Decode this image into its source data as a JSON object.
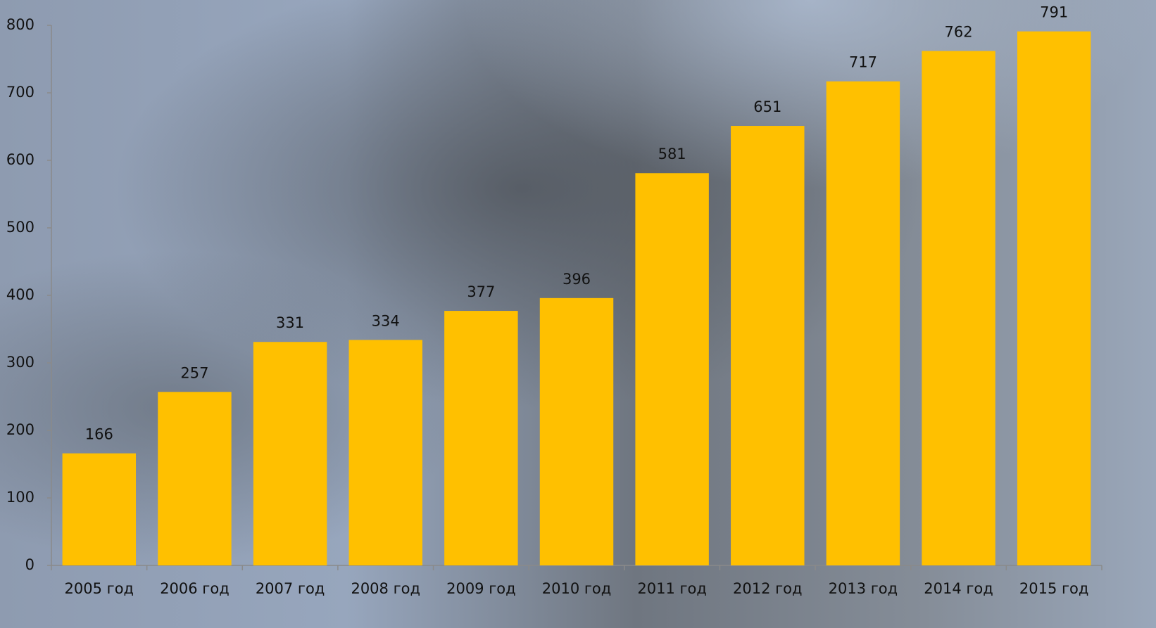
{
  "chart_data": {
    "type": "bar",
    "categories": [
      "2005 год",
      "2006 год",
      "2007 год",
      "2008 год",
      "2009 год",
      "2010 год",
      "2011 год",
      "2012 год",
      "2013 год",
      "2014 год",
      "2015 год"
    ],
    "values": [
      166,
      257,
      331,
      334,
      377,
      396,
      581,
      651,
      717,
      762,
      791
    ],
    "color": "#ffc000",
    "ylim": [
      0,
      800
    ],
    "yticks": [
      0,
      100,
      200,
      300,
      400,
      500,
      600,
      700,
      800
    ],
    "grid": false,
    "data_labels": true
  }
}
